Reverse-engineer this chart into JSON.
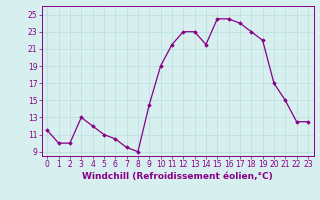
{
  "x": [
    0,
    1,
    2,
    3,
    4,
    5,
    6,
    7,
    8,
    9,
    10,
    11,
    12,
    13,
    14,
    15,
    16,
    17,
    18,
    19,
    20,
    21,
    22,
    23
  ],
  "y": [
    11.5,
    10.0,
    10.0,
    13.0,
    12.0,
    11.0,
    10.5,
    9.5,
    9.0,
    14.5,
    19.0,
    21.5,
    23.0,
    23.0,
    21.5,
    24.5,
    24.5,
    24.0,
    23.0,
    22.0,
    17.0,
    15.0,
    12.5,
    12.5
  ],
  "line_color": "#880088",
  "marker": "D",
  "marker_size": 1.8,
  "line_width": 0.9,
  "bg_color": "#d8efef",
  "grid_color": "#b8dede",
  "xlabel": "Windchill (Refroidissement éolien,°C)",
  "xlabel_fontsize": 6.5,
  "tick_fontsize": 5.5,
  "ylim": [
    8.5,
    26
  ],
  "yticks": [
    9,
    11,
    13,
    15,
    17,
    19,
    21,
    23,
    25
  ],
  "xlim": [
    -0.5,
    23.5
  ],
  "xticks": [
    0,
    1,
    2,
    3,
    4,
    5,
    6,
    7,
    8,
    9,
    10,
    11,
    12,
    13,
    14,
    15,
    16,
    17,
    18,
    19,
    20,
    21,
    22,
    23
  ]
}
